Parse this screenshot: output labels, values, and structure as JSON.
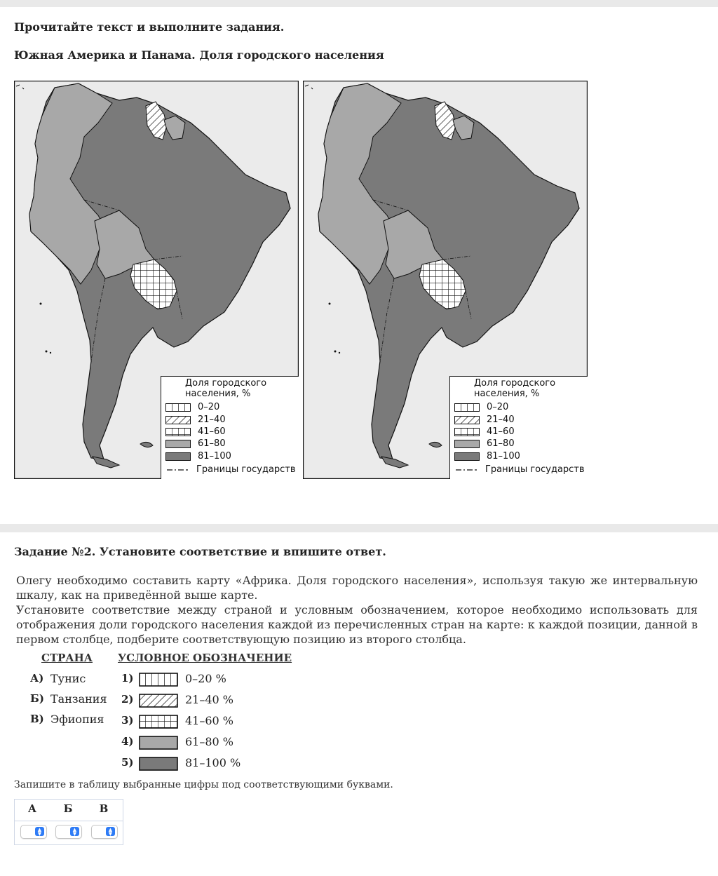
{
  "intro": "Прочитайте текст и выполните задания.",
  "map_title": "Южная Америка и Панама. Доля городского населения",
  "legend": {
    "title_line1": "Доля городского",
    "title_line2": "населения, %",
    "items": [
      "0–20",
      "21–40",
      "41–60",
      "61–80",
      "81–100"
    ],
    "borders_label": "Границы государств",
    "colors": {
      "light": "#a8a8a8",
      "dark": "#7a7a7a",
      "ocean": "#ebebeb"
    }
  },
  "task": {
    "title": "Задание №2. Установите соответствие и впишите ответ.",
    "paragraph1": "Олегу необходимо составить карту «Африка. Доля городского населения», используя такую же интервальную шкалу, как на приведённой выше карте.",
    "paragraph2": "Установите соответствие между страной и условным обозначением, которое необходимо использовать для отображения доли городского населения каждой из перечисленных стран на карте: к каждой позиции, данной в первом столбце, подберите соответствующую позицию из второго столбца.",
    "col1_header": "СТРАНА",
    "col2_header": "УСЛОВНОЕ ОБОЗНАЧЕНИЕ",
    "countries": [
      {
        "letter": "А)",
        "name": "Тунис"
      },
      {
        "letter": "Б)",
        "name": "Танзания"
      },
      {
        "letter": "В)",
        "name": "Эфиопия"
      }
    ],
    "options": [
      {
        "num": "1)",
        "label": "0–20 %",
        "icon": "vertical-lines-swatch"
      },
      {
        "num": "2)",
        "label": "21–40 %",
        "icon": "diagonal-hatch-swatch"
      },
      {
        "num": "3)",
        "label": "41–60 %",
        "icon": "grid-swatch"
      },
      {
        "num": "4)",
        "label": "61–80 %",
        "icon": "light-gray-swatch"
      },
      {
        "num": "5)",
        "label": "81–100 %",
        "icon": "dark-gray-swatch"
      }
    ],
    "note": "Запишите в таблицу выбранные цифры под соответствующими буквами.",
    "answer_headers": [
      "А",
      "Б",
      "В"
    ],
    "answer_values": [
      "",
      "",
      ""
    ]
  }
}
